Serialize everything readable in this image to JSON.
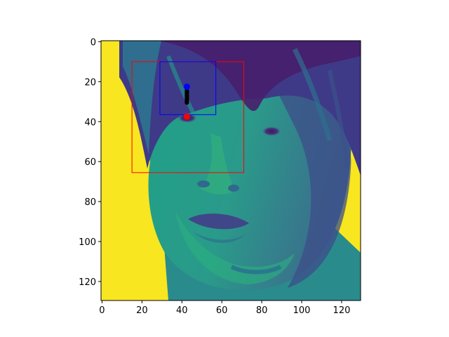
{
  "figure": {
    "x_ticks": [
      "0",
      "20",
      "40",
      "60",
      "80",
      "100",
      "120"
    ],
    "y_ticks": [
      "0",
      "20",
      "40",
      "60",
      "80",
      "100",
      "120"
    ]
  },
  "image": {
    "colormap": "viridis",
    "width": 130,
    "height": 130
  },
  "chart_data": {
    "type": "image",
    "xlim": [
      -0.5,
      129.5
    ],
    "ylim": [
      129.5,
      -0.5
    ],
    "x_ticks": [
      0,
      20,
      40,
      60,
      80,
      100,
      120
    ],
    "y_ticks": [
      0,
      20,
      40,
      60,
      80,
      100,
      120
    ],
    "boxes": [
      {
        "color": "#ff0000",
        "x0": 15,
        "y0": 10,
        "x1": 71,
        "y1": 65.5
      },
      {
        "color": "#0000ff",
        "x0": 29,
        "y0": 10,
        "x1": 57,
        "y1": 36.5
      }
    ],
    "points": [
      {
        "color": "#0000ff",
        "x": 42.5,
        "y": 22.5
      },
      {
        "color": "#ff0000",
        "x": 42.5,
        "y": 37.5
      }
    ],
    "paths": [
      {
        "color": "#000000",
        "points": [
          [
            42.5,
            24.5
          ],
          [
            42.5,
            30.5
          ]
        ]
      }
    ]
  }
}
